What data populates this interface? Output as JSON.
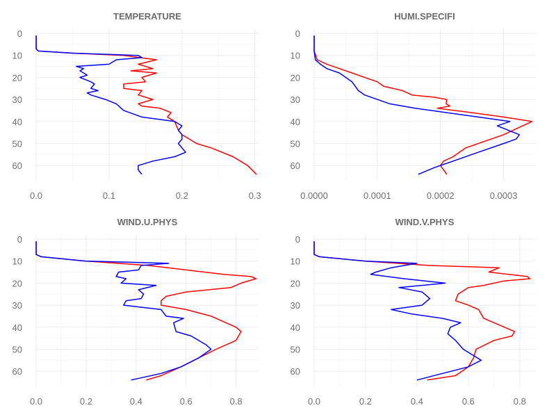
{
  "chart_data": [
    {
      "type": "line",
      "title": "TEMPERATURE",
      "xlim": [
        0,
        0.305
      ],
      "ylim": [
        0,
        65
      ],
      "y_reversed": true,
      "xticks": [
        0,
        0.1,
        0.2,
        0.3
      ],
      "xtick_labels": [
        "0.0",
        "0.1",
        "0.2",
        "0.3"
      ],
      "yticks": [
        0,
        10,
        20,
        30,
        40,
        50,
        60
      ],
      "ytick_labels": [
        "0",
        "10",
        "20",
        "30",
        "40",
        "50",
        "60"
      ],
      "grid": true,
      "series": [
        {
          "color": "#ff0000",
          "points": [
            [
              0,
              1
            ],
            [
              0,
              4
            ],
            [
              0,
              7
            ],
            [
              0.003,
              8
            ],
            [
              0.05,
              9
            ],
            [
              0.12,
              10
            ],
            [
              0.165,
              12
            ],
            [
              0.14,
              14
            ],
            [
              0.16,
              16
            ],
            [
              0.13,
              17
            ],
            [
              0.165,
              18
            ],
            [
              0.145,
              20
            ],
            [
              0.15,
              22
            ],
            [
              0.12,
              23
            ],
            [
              0.12,
              25
            ],
            [
              0.145,
              26
            ],
            [
              0.14,
              28
            ],
            [
              0.16,
              30
            ],
            [
              0.14,
              32
            ],
            [
              0.145,
              33
            ],
            [
              0.17,
              34
            ],
            [
              0.185,
              36
            ],
            [
              0.18,
              38
            ],
            [
              0.19,
              40
            ],
            [
              0.195,
              44
            ],
            [
              0.2,
              46
            ],
            [
              0.21,
              48
            ],
            [
              0.22,
              50
            ],
            [
              0.24,
              52
            ],
            [
              0.27,
              56
            ],
            [
              0.29,
              60
            ],
            [
              0.302,
              64
            ]
          ]
        },
        {
          "color": "#0000ff",
          "points": [
            [
              0,
              1
            ],
            [
              0,
              4
            ],
            [
              0,
              7
            ],
            [
              0.003,
              8
            ],
            [
              0.05,
              9
            ],
            [
              0.14,
              10
            ],
            [
              0.145,
              11
            ],
            [
              0.11,
              12
            ],
            [
              0.1,
              14
            ],
            [
              0.055,
              15
            ],
            [
              0.065,
              16
            ],
            [
              0.06,
              17
            ],
            [
              0.065,
              18
            ],
            [
              0.07,
              19
            ],
            [
              0.06,
              20
            ],
            [
              0.075,
              22
            ],
            [
              0.08,
              23
            ],
            [
              0.075,
              25
            ],
            [
              0.085,
              26
            ],
            [
              0.07,
              27
            ],
            [
              0.075,
              28
            ],
            [
              0.095,
              30
            ],
            [
              0.11,
              32
            ],
            [
              0.12,
              35
            ],
            [
              0.145,
              38
            ],
            [
              0.19,
              40
            ],
            [
              0.2,
              42
            ],
            [
              0.195,
              44
            ],
            [
              0.2,
              46
            ],
            [
              0.2,
              48
            ],
            [
              0.195,
              50
            ],
            [
              0.2,
              52
            ],
            [
              0.205,
              54
            ],
            [
              0.19,
              56
            ],
            [
              0.16,
              58
            ],
            [
              0.14,
              60
            ],
            [
              0.14,
              62
            ],
            [
              0.145,
              64
            ]
          ]
        }
      ]
    },
    {
      "type": "line",
      "title": "HUMI.SPECIFI",
      "xlim": [
        0,
        0.00035
      ],
      "ylim": [
        0,
        65
      ],
      "y_reversed": true,
      "xticks": [
        0,
        0.0001,
        0.0002,
        0.0003
      ],
      "xtick_labels": [
        "0.0000",
        "0.0001",
        "0.0002",
        "0.0003"
      ],
      "yticks": [
        0,
        10,
        20,
        30,
        40,
        50,
        60
      ],
      "ytick_labels": [
        "0",
        "10",
        "20",
        "30",
        "40",
        "50",
        "60"
      ],
      "grid": true,
      "series": [
        {
          "color": "#ff0000",
          "points": [
            [
              0,
              1
            ],
            [
              0,
              8
            ],
            [
              5e-06,
              12
            ],
            [
              2e-05,
              14
            ],
            [
              4e-05,
              16
            ],
            [
              6e-05,
              18
            ],
            [
              8e-05,
              20
            ],
            [
              0.0001,
              22
            ],
            [
              0.00011,
              24
            ],
            [
              0.00014,
              26
            ],
            [
              0.000155,
              28
            ],
            [
              0.00019,
              29
            ],
            [
              0.00021,
              30
            ],
            [
              0.000209,
              32
            ],
            [
              0.000215,
              33
            ],
            [
              0.000195,
              34
            ],
            [
              0.00025,
              36
            ],
            [
              0.0003,
              38
            ],
            [
              0.000345,
              40
            ],
            [
              0.00033,
              42
            ],
            [
              0.0003,
              46
            ],
            [
              0.00027,
              49
            ],
            [
              0.00024,
              52
            ],
            [
              0.00022,
              56
            ],
            [
              0.000205,
              58
            ],
            [
              0.0002,
              60
            ],
            [
              0.000205,
              62
            ],
            [
              0.00021,
              64
            ]
          ]
        },
        {
          "color": "#0000ff",
          "points": [
            [
              0,
              1
            ],
            [
              0,
              8
            ],
            [
              2e-06,
              12
            ],
            [
              1e-05,
              14
            ],
            [
              2e-05,
              16
            ],
            [
              4e-05,
              18
            ],
            [
              5e-05,
              20
            ],
            [
              6e-05,
              22
            ],
            [
              6.5e-05,
              24
            ],
            [
              7e-05,
              26
            ],
            [
              8e-05,
              28
            ],
            [
              0.0001,
              30
            ],
            [
              0.00012,
              32
            ],
            [
              0.00016,
              34
            ],
            [
              0.00021,
              36
            ],
            [
              0.00026,
              38
            ],
            [
              0.00031,
              40
            ],
            [
              0.00029,
              42
            ],
            [
              0.000325,
              46
            ],
            [
              0.00032,
              48
            ],
            [
              0.0003,
              50
            ],
            [
              0.00026,
              54
            ],
            [
              0.00022,
              58
            ],
            [
              0.00019,
              61
            ],
            [
              0.000165,
              64
            ]
          ]
        }
      ]
    },
    {
      "type": "line",
      "title": "WIND.U.PHYS",
      "xlim": [
        0,
        0.89
      ],
      "ylim": [
        0,
        65
      ],
      "y_reversed": true,
      "xticks": [
        0,
        0.2,
        0.4,
        0.6,
        0.8
      ],
      "xtick_labels": [
        "0.0",
        "0.2",
        "0.4",
        "0.6",
        "0.8"
      ],
      "yticks": [
        0,
        10,
        20,
        30,
        40,
        50,
        60
      ],
      "ytick_labels": [
        "0",
        "10",
        "20",
        "30",
        "40",
        "50",
        "60"
      ],
      "grid": true,
      "series": [
        {
          "color": "#ff0000",
          "points": [
            [
              0,
              1
            ],
            [
              0,
              4
            ],
            [
              0,
              7
            ],
            [
              0.02,
              8
            ],
            [
              0.2,
              10
            ],
            [
              0.45,
              12
            ],
            [
              0.6,
              14
            ],
            [
              0.75,
              16
            ],
            [
              0.86,
              17
            ],
            [
              0.88,
              18
            ],
            [
              0.82,
              20
            ],
            [
              0.78,
              22
            ],
            [
              0.6,
              24
            ],
            [
              0.52,
              26
            ],
            [
              0.5,
              28
            ],
            [
              0.5,
              30
            ],
            [
              0.6,
              32
            ],
            [
              0.7,
              35
            ],
            [
              0.8,
              40
            ],
            [
              0.82,
              42
            ],
            [
              0.8,
              46
            ],
            [
              0.72,
              50
            ],
            [
              0.65,
              54
            ],
            [
              0.58,
              58
            ],
            [
              0.5,
              62
            ],
            [
              0.44,
              64
            ]
          ]
        },
        {
          "color": "#0000ff",
          "points": [
            [
              0,
              1
            ],
            [
              0,
              4
            ],
            [
              0,
              7
            ],
            [
              0.02,
              8
            ],
            [
              0.2,
              10
            ],
            [
              0.53,
              11
            ],
            [
              0.42,
              12
            ],
            [
              0.41,
              14
            ],
            [
              0.33,
              15
            ],
            [
              0.32,
              17
            ],
            [
              0.36,
              18
            ],
            [
              0.34,
              20
            ],
            [
              0.48,
              21
            ],
            [
              0.41,
              23
            ],
            [
              0.43,
              25
            ],
            [
              0.42,
              27
            ],
            [
              0.36,
              28
            ],
            [
              0.35,
              30
            ],
            [
              0.5,
              32
            ],
            [
              0.52,
              35
            ],
            [
              0.59,
              36
            ],
            [
              0.55,
              38
            ],
            [
              0.56,
              42
            ],
            [
              0.62,
              44
            ],
            [
              0.68,
              48
            ],
            [
              0.7,
              50
            ],
            [
              0.65,
              54
            ],
            [
              0.58,
              58
            ],
            [
              0.5,
              61
            ],
            [
              0.38,
              64
            ]
          ]
        }
      ]
    },
    {
      "type": "line",
      "title": "WIND.V.PHYS",
      "xlim": [
        0,
        0.86
      ],
      "ylim": [
        0,
        65
      ],
      "y_reversed": true,
      "xticks": [
        0,
        0.2,
        0.4,
        0.6,
        0.8
      ],
      "xtick_labels": [
        "0.0",
        "0.2",
        "0.4",
        "0.6",
        "0.8"
      ],
      "yticks": [
        0,
        10,
        20,
        30,
        40,
        50,
        60
      ],
      "ytick_labels": [
        "0",
        "10",
        "20",
        "30",
        "40",
        "50",
        "60"
      ],
      "grid": true,
      "series": [
        {
          "color": "#ff0000",
          "points": [
            [
              0,
              1
            ],
            [
              0,
              4
            ],
            [
              0,
              7
            ],
            [
              0.02,
              8
            ],
            [
              0.2,
              10
            ],
            [
              0.45,
              12
            ],
            [
              0.72,
              13
            ],
            [
              0.68,
              15
            ],
            [
              0.83,
              17
            ],
            [
              0.84,
              18
            ],
            [
              0.74,
              19
            ],
            [
              0.66,
              21
            ],
            [
              0.6,
              22
            ],
            [
              0.56,
              25
            ],
            [
              0.55,
              28
            ],
            [
              0.6,
              30
            ],
            [
              0.64,
              32
            ],
            [
              0.66,
              36
            ],
            [
              0.72,
              39
            ],
            [
              0.78,
              42
            ],
            [
              0.77,
              44
            ],
            [
              0.7,
              46
            ],
            [
              0.63,
              50
            ],
            [
              0.62,
              54
            ],
            [
              0.6,
              58
            ],
            [
              0.55,
              62
            ],
            [
              0.44,
              64
            ]
          ]
        },
        {
          "color": "#0000ff",
          "points": [
            [
              0,
              1
            ],
            [
              0,
              4
            ],
            [
              0,
              7
            ],
            [
              0.02,
              8
            ],
            [
              0.2,
              10
            ],
            [
              0.4,
              11
            ],
            [
              0.3,
              13
            ],
            [
              0.24,
              15
            ],
            [
              0.22,
              16
            ],
            [
              0.35,
              18
            ],
            [
              0.51,
              20
            ],
            [
              0.33,
              22
            ],
            [
              0.42,
              24
            ],
            [
              0.45,
              27
            ],
            [
              0.42,
              30
            ],
            [
              0.3,
              32
            ],
            [
              0.38,
              34
            ],
            [
              0.5,
              36
            ],
            [
              0.57,
              38
            ],
            [
              0.53,
              40
            ],
            [
              0.52,
              43
            ],
            [
              0.55,
              46
            ],
            [
              0.58,
              50
            ],
            [
              0.65,
              55
            ],
            [
              0.6,
              58
            ],
            [
              0.5,
              61
            ],
            [
              0.4,
              64
            ]
          ]
        }
      ]
    }
  ]
}
